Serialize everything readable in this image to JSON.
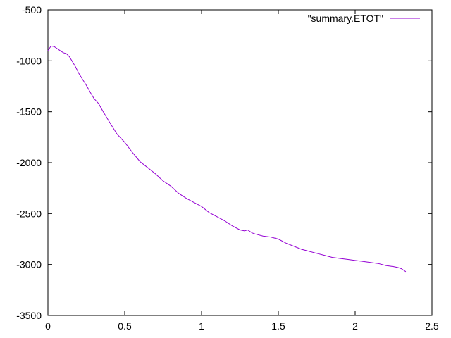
{
  "chart_data": {
    "type": "line",
    "title": "",
    "xlabel": "",
    "ylabel": "",
    "xlim": [
      0,
      2.5
    ],
    "ylim": [
      -3500,
      -500
    ],
    "x_ticks": [
      0,
      0.5,
      1,
      1.5,
      2,
      2.5
    ],
    "x_tick_labels": [
      "0",
      "0.5",
      "1",
      "1.5",
      "2",
      "2.5"
    ],
    "y_ticks": [
      -500,
      -1000,
      -1500,
      -2000,
      -2500,
      -3000,
      -3500
    ],
    "y_tick_labels": [
      "-500",
      "-1000",
      "-1500",
      "-2000",
      "-2500",
      "-3000",
      "-3500"
    ],
    "grid": false,
    "legend_position": "top-right",
    "series": [
      {
        "name": "\"summary.ETOT\"",
        "color": "#9400d3",
        "x": [
          0,
          0.02,
          0.04,
          0.06,
          0.08,
          0.1,
          0.12,
          0.14,
          0.16,
          0.18,
          0.2,
          0.22,
          0.25,
          0.28,
          0.3,
          0.33,
          0.36,
          0.4,
          0.45,
          0.5,
          0.55,
          0.6,
          0.65,
          0.7,
          0.75,
          0.8,
          0.85,
          0.9,
          0.95,
          1.0,
          1.05,
          1.1,
          1.15,
          1.2,
          1.25,
          1.28,
          1.3,
          1.33,
          1.35,
          1.4,
          1.45,
          1.5,
          1.55,
          1.6,
          1.65,
          1.7,
          1.75,
          1.8,
          1.85,
          1.9,
          1.95,
          2.0,
          2.05,
          2.1,
          2.15,
          2.2,
          2.25,
          2.28,
          2.3,
          2.33
        ],
        "y": [
          -900,
          -855,
          -860,
          -880,
          -900,
          -920,
          -930,
          -960,
          -1010,
          -1060,
          -1120,
          -1170,
          -1240,
          -1320,
          -1370,
          -1420,
          -1500,
          -1600,
          -1720,
          -1800,
          -1900,
          -1990,
          -2050,
          -2110,
          -2180,
          -2230,
          -2300,
          -2350,
          -2390,
          -2430,
          -2490,
          -2530,
          -2570,
          -2620,
          -2660,
          -2670,
          -2660,
          -2690,
          -2700,
          -2720,
          -2730,
          -2750,
          -2790,
          -2820,
          -2850,
          -2870,
          -2890,
          -2910,
          -2930,
          -2940,
          -2950,
          -2960,
          -2970,
          -2980,
          -2990,
          -3010,
          -3020,
          -3030,
          -3040,
          -3070
        ]
      }
    ]
  }
}
